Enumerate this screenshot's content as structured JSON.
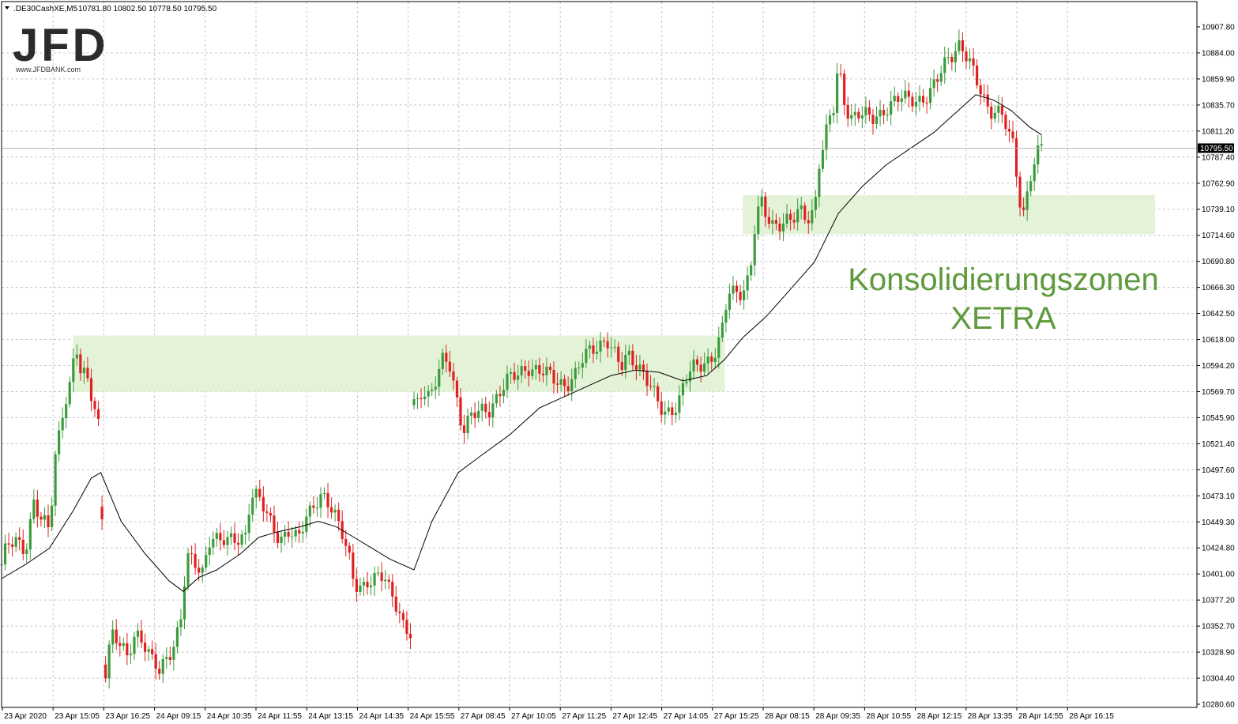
{
  "header": {
    "symbol": ".DE30CashXE,M5",
    "ohlc": "10781.80 10802.50 10778.50 10795.50"
  },
  "logo": {
    "brand": "JFD",
    "url": "www.JFDBANK.com"
  },
  "annotation": {
    "line1": "Konsolidierungszonen",
    "line2": "XETRA"
  },
  "colors": {
    "bull": "#3a9b3a",
    "bear": "#e02020",
    "zone": "#e4f3d8",
    "ma": "#000000",
    "grid": "#c8c8c8",
    "annotation": "#5e9a3c"
  },
  "chart_data": {
    "type": "candlestick",
    "title": "",
    "ylim": [
      10280.6,
      10919.0
    ],
    "last_price": "10795.50",
    "y_ticks": [
      "10907.80",
      "10884.00",
      "10859.90",
      "10835.70",
      "10811.20",
      "10787.40",
      "10762.90",
      "10739.10",
      "10714.60",
      "10690.80",
      "10666.30",
      "10642.50",
      "10618.00",
      "10594.20",
      "10569.70",
      "10545.90",
      "10521.40",
      "10497.60",
      "10473.10",
      "10449.30",
      "10424.80",
      "10401.00",
      "10377.20",
      "10352.70",
      "10328.90",
      "10304.40",
      "10280.60"
    ],
    "x_ticks": [
      "23 Apr 2020",
      "23 Apr 15:05",
      "23 Apr 16:25",
      "24 Apr 09:15",
      "24 Apr 10:35",
      "24 Apr 11:55",
      "24 Apr 13:15",
      "24 Apr 14:35",
      "24 Apr 15:55",
      "27 Apr 08:45",
      "27 Apr 10:05",
      "27 Apr 11:25",
      "27 Apr 12:45",
      "27 Apr 14:05",
      "27 Apr 15:25",
      "28 Apr 08:15",
      "28 Apr 09:35",
      "28 Apr 10:55",
      "28 Apr 12:15",
      "28 Apr 13:35",
      "28 Apr 14:55",
      "28 Apr 16:15"
    ],
    "zones": [
      {
        "from": 0.06,
        "to": 0.605,
        "low": 10570,
        "high": 10622
      },
      {
        "from": 0.62,
        "to": 0.965,
        "low": 10716,
        "high": 10752
      }
    ],
    "anchors": [
      [
        0.0,
        10410
      ],
      [
        0.004,
        10425
      ],
      [
        0.012,
        10430
      ],
      [
        0.02,
        10425
      ],
      [
        0.027,
        10470
      ],
      [
        0.033,
        10450
      ],
      [
        0.04,
        10440
      ],
      [
        0.045,
        10510
      ],
      [
        0.052,
        10560
      ],
      [
        0.058,
        10580
      ],
      [
        0.062,
        10615
      ],
      [
        0.066,
        10585
      ],
      [
        0.072,
        10580
      ],
      [
        0.078,
        10555
      ],
      [
        0.083,
        10535
      ],
      [
        0.086,
        10305
      ],
      [
        0.092,
        10345
      ],
      [
        0.098,
        10335
      ],
      [
        0.105,
        10325
      ],
      [
        0.112,
        10350
      ],
      [
        0.118,
        10340
      ],
      [
        0.125,
        10320
      ],
      [
        0.132,
        10310
      ],
      [
        0.138,
        10325
      ],
      [
        0.145,
        10340
      ],
      [
        0.15,
        10360
      ],
      [
        0.155,
        10415
      ],
      [
        0.16,
        10410
      ],
      [
        0.168,
        10405
      ],
      [
        0.175,
        10440
      ],
      [
        0.182,
        10430
      ],
      [
        0.19,
        10430
      ],
      [
        0.197,
        10435
      ],
      [
        0.205,
        10440
      ],
      [
        0.208,
        10475
      ],
      [
        0.215,
        10470
      ],
      [
        0.222,
        10455
      ],
      [
        0.228,
        10445
      ],
      [
        0.233,
        10435
      ],
      [
        0.24,
        10440
      ],
      [
        0.248,
        10430
      ],
      [
        0.255,
        10455
      ],
      [
        0.262,
        10470
      ],
      [
        0.268,
        10475
      ],
      [
        0.275,
        10460
      ],
      [
        0.28,
        10450
      ],
      [
        0.285,
        10440
      ],
      [
        0.29,
        10425
      ],
      [
        0.295,
        10395
      ],
      [
        0.302,
        10385
      ],
      [
        0.308,
        10390
      ],
      [
        0.315,
        10400
      ],
      [
        0.32,
        10405
      ],
      [
        0.326,
        10385
      ],
      [
        0.332,
        10365
      ],
      [
        0.337,
        10345
      ],
      [
        0.342,
        10345
      ],
      [
        0.347,
        10560
      ],
      [
        0.352,
        10575
      ],
      [
        0.358,
        10565
      ],
      [
        0.364,
        10580
      ],
      [
        0.37,
        10600
      ],
      [
        0.375,
        10595
      ],
      [
        0.38,
        10570
      ],
      [
        0.386,
        10535
      ],
      [
        0.392,
        10545
      ],
      [
        0.4,
        10550
      ],
      [
        0.408,
        10555
      ],
      [
        0.416,
        10570
      ],
      [
        0.424,
        10580
      ],
      [
        0.432,
        10585
      ],
      [
        0.44,
        10595
      ],
      [
        0.448,
        10590
      ],
      [
        0.456,
        10585
      ],
      [
        0.464,
        10580
      ],
      [
        0.472,
        10578
      ],
      [
        0.48,
        10585
      ],
      [
        0.487,
        10600
      ],
      [
        0.494,
        10610
      ],
      [
        0.5,
        10615
      ],
      [
        0.506,
        10620
      ],
      [
        0.512,
        10605
      ],
      [
        0.518,
        10590
      ],
      [
        0.524,
        10605
      ],
      [
        0.53,
        10600
      ],
      [
        0.536,
        10590
      ],
      [
        0.542,
        10575
      ],
      [
        0.548,
        10560
      ],
      [
        0.554,
        10550
      ],
      [
        0.56,
        10555
      ],
      [
        0.566,
        10560
      ],
      [
        0.572,
        10580
      ],
      [
        0.578,
        10590
      ],
      [
        0.584,
        10595
      ],
      [
        0.59,
        10600
      ],
      [
        0.596,
        10605
      ],
      [
        0.602,
        10620
      ],
      [
        0.608,
        10660
      ],
      [
        0.614,
        10662
      ],
      [
        0.62,
        10665
      ],
      [
        0.626,
        10680
      ],
      [
        0.63,
        10720
      ],
      [
        0.635,
        10745
      ],
      [
        0.64,
        10730
      ],
      [
        0.645,
        10725
      ],
      [
        0.65,
        10728
      ],
      [
        0.656,
        10730
      ],
      [
        0.662,
        10728
      ],
      [
        0.668,
        10735
      ],
      [
        0.674,
        10730
      ],
      [
        0.68,
        10740
      ],
      [
        0.684,
        10785
      ],
      [
        0.688,
        10800
      ],
      [
        0.692,
        10820
      ],
      [
        0.696,
        10830
      ],
      [
        0.7,
        10870
      ],
      [
        0.705,
        10840
      ],
      [
        0.71,
        10825
      ],
      [
        0.716,
        10830
      ],
      [
        0.722,
        10825
      ],
      [
        0.728,
        10820
      ],
      [
        0.734,
        10825
      ],
      [
        0.74,
        10835
      ],
      [
        0.746,
        10840
      ],
      [
        0.752,
        10842
      ],
      [
        0.758,
        10838
      ],
      [
        0.764,
        10840
      ],
      [
        0.77,
        10842
      ],
      [
        0.776,
        10848
      ],
      [
        0.782,
        10855
      ],
      [
        0.788,
        10870
      ],
      [
        0.794,
        10880
      ],
      [
        0.8,
        10895
      ],
      [
        0.806,
        10885
      ],
      [
        0.81,
        10875
      ],
      [
        0.815,
        10855
      ],
      [
        0.82,
        10845
      ],
      [
        0.826,
        10830
      ],
      [
        0.832,
        10835
      ],
      [
        0.838,
        10825
      ],
      [
        0.842,
        10810
      ],
      [
        0.846,
        10795
      ],
      [
        0.85,
        10760
      ],
      [
        0.854,
        10730
      ],
      [
        0.858,
        10755
      ],
      [
        0.862,
        10780
      ],
      [
        0.866,
        10792
      ],
      [
        0.87,
        10796
      ]
    ],
    "ma": [
      [
        0.0,
        10397
      ],
      [
        0.02,
        10410
      ],
      [
        0.04,
        10425
      ],
      [
        0.06,
        10460
      ],
      [
        0.075,
        10490
      ],
      [
        0.083,
        10495
      ],
      [
        0.1,
        10450
      ],
      [
        0.12,
        10420
      ],
      [
        0.14,
        10395
      ],
      [
        0.152,
        10385
      ],
      [
        0.165,
        10398
      ],
      [
        0.18,
        10405
      ],
      [
        0.2,
        10420
      ],
      [
        0.215,
        10435
      ],
      [
        0.23,
        10440
      ],
      [
        0.25,
        10445
      ],
      [
        0.265,
        10450
      ],
      [
        0.28,
        10445
      ],
      [
        0.295,
        10435
      ],
      [
        0.31,
        10425
      ],
      [
        0.325,
        10415
      ],
      [
        0.345,
        10405
      ],
      [
        0.36,
        10450
      ],
      [
        0.382,
        10495
      ],
      [
        0.4,
        10510
      ],
      [
        0.425,
        10530
      ],
      [
        0.45,
        10555
      ],
      [
        0.47,
        10565
      ],
      [
        0.49,
        10575
      ],
      [
        0.51,
        10585
      ],
      [
        0.53,
        10590
      ],
      [
        0.55,
        10588
      ],
      [
        0.57,
        10580
      ],
      [
        0.59,
        10585
      ],
      [
        0.605,
        10600
      ],
      [
        0.62,
        10620
      ],
      [
        0.64,
        10640
      ],
      [
        0.66,
        10665
      ],
      [
        0.68,
        10690
      ],
      [
        0.7,
        10735
      ],
      [
        0.72,
        10760
      ],
      [
        0.74,
        10780
      ],
      [
        0.76,
        10795
      ],
      [
        0.78,
        10810
      ],
      [
        0.8,
        10830
      ],
      [
        0.815,
        10845
      ],
      [
        0.83,
        10840
      ],
      [
        0.845,
        10830
      ],
      [
        0.86,
        10815
      ],
      [
        0.87,
        10808
      ]
    ]
  }
}
